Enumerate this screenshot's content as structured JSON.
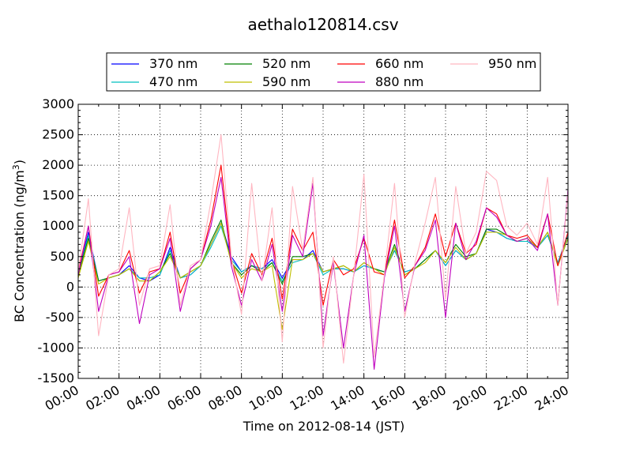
{
  "chart_data": {
    "type": "line",
    "title": "aethalo120814.csv",
    "xlabel": "Time on 2012-08-14 (JST)",
    "ylabel": "BC Concentration (ng/m³)",
    "ylabel_main": "BC Concentration (ng/m",
    "ylabel_sup": "3",
    "ylabel_end": ")",
    "xlim": [
      "00:00",
      "24:00"
    ],
    "ylim": [
      -1500,
      3000
    ],
    "x_ticks": [
      "00:00",
      "02:00",
      "04:00",
      "06:00",
      "08:00",
      "10:00",
      "12:00",
      "14:00",
      "16:00",
      "18:00",
      "20:00",
      "22:00",
      "24:00"
    ],
    "y_ticks": [
      3000,
      2500,
      2000,
      1500,
      1000,
      500,
      0,
      -500,
      -1000,
      -1500
    ],
    "grid": true,
    "legend_position": "top-center",
    "x": [
      "00:00",
      "00:30",
      "01:00",
      "01:30",
      "02:00",
      "02:30",
      "03:00",
      "03:30",
      "04:00",
      "04:30",
      "05:00",
      "05:30",
      "06:00",
      "06:30",
      "07:00",
      "07:30",
      "08:00",
      "08:30",
      "09:00",
      "09:30",
      "10:00",
      "10:30",
      "11:00",
      "11:30",
      "12:00",
      "12:30",
      "13:00",
      "13:30",
      "14:00",
      "14:30",
      "15:00",
      "15:30",
      "16:00",
      "16:30",
      "17:00",
      "17:30",
      "18:00",
      "18:30",
      "19:00",
      "19:30",
      "20:00",
      "20:30",
      "21:00",
      "21:30",
      "22:00",
      "22:30",
      "23:00",
      "23:30",
      "24:00"
    ],
    "series": [
      {
        "name": "370 nm",
        "color": "#0000ff",
        "values": [
          200,
          900,
          100,
          150,
          200,
          350,
          150,
          100,
          200,
          650,
          150,
          200,
          350,
          700,
          1050,
          500,
          250,
          350,
          300,
          450,
          150,
          450,
          450,
          600,
          250,
          300,
          300,
          250,
          350,
          300,
          250,
          600,
          250,
          300,
          450,
          600,
          350,
          600,
          450,
          550,
          950,
          900,
          800,
          750,
          750,
          650,
          850,
          400,
          850
        ]
      },
      {
        "name": "470 nm",
        "color": "#00bfbf",
        "values": [
          200,
          850,
          100,
          150,
          200,
          300,
          150,
          150,
          200,
          600,
          150,
          200,
          350,
          650,
          1000,
          450,
          250,
          350,
          300,
          400,
          100,
          400,
          450,
          550,
          200,
          300,
          300,
          250,
          350,
          300,
          250,
          600,
          250,
          300,
          450,
          600,
          350,
          600,
          450,
          550,
          900,
          900,
          800,
          750,
          750,
          650,
          850,
          400,
          850
        ]
      },
      {
        "name": "520 nm",
        "color": "#008000",
        "values": [
          200,
          800,
          100,
          150,
          200,
          300,
          100,
          100,
          250,
          550,
          150,
          250,
          350,
          750,
          1100,
          400,
          200,
          350,
          250,
          400,
          50,
          500,
          500,
          550,
          250,
          300,
          350,
          250,
          400,
          300,
          250,
          700,
          200,
          300,
          450,
          600,
          400,
          700,
          500,
          550,
          950,
          950,
          850,
          750,
          800,
          650,
          900,
          350,
          800
        ]
      },
      {
        "name": "590 nm",
        "color": "#bfbf00",
        "values": [
          150,
          750,
          50,
          150,
          200,
          300,
          100,
          100,
          250,
          500,
          150,
          250,
          350,
          700,
          1050,
          400,
          150,
          300,
          250,
          350,
          -700,
          450,
          450,
          550,
          250,
          300,
          350,
          250,
          400,
          300,
          200,
          650,
          200,
          300,
          400,
          600,
          400,
          650,
          450,
          550,
          900,
          900,
          850,
          750,
          800,
          650,
          900,
          350,
          800
        ]
      },
      {
        "name": "660 nm",
        "color": "#ff0000",
        "values": [
          250,
          1000,
          -150,
          200,
          250,
          600,
          -100,
          250,
          300,
          900,
          -100,
          300,
          450,
          1100,
          2000,
          450,
          -100,
          550,
          200,
          800,
          -200,
          950,
          600,
          900,
          -300,
          450,
          200,
          300,
          800,
          250,
          200,
          1100,
          150,
          350,
          650,
          1200,
          500,
          1050,
          550,
          700,
          1300,
          1200,
          850,
          800,
          850,
          650,
          1200,
          350,
          900
        ]
      },
      {
        "name": "880 nm",
        "color": "#bf00bf",
        "values": [
          200,
          1000,
          -400,
          200,
          250,
          500,
          -600,
          200,
          300,
          800,
          -400,
          300,
          450,
          1000,
          1800,
          350,
          -300,
          450,
          100,
          700,
          -400,
          850,
          500,
          1700,
          -800,
          400,
          -1000,
          200,
          850,
          -1350,
          150,
          1000,
          -400,
          350,
          600,
          1100,
          -500,
          1050,
          450,
          750,
          1300,
          1150,
          850,
          750,
          800,
          600,
          1200,
          -300,
          1600
        ]
      },
      {
        "name": "950 nm",
        "color": "#ffb6c1",
        "values": [
          250,
          1450,
          -800,
          200,
          300,
          1300,
          -300,
          300,
          350,
          1350,
          -300,
          350,
          450,
          1400,
          2500,
          500,
          -450,
          1700,
          100,
          1300,
          -900,
          1650,
          600,
          1800,
          -1000,
          500,
          -1250,
          200,
          1850,
          -1150,
          200,
          1700,
          -500,
          400,
          1050,
          1800,
          -200,
          1650,
          550,
          900,
          1900,
          1750,
          1000,
          850,
          1050,
          700,
          1800,
          -300,
          1550
        ]
      }
    ]
  }
}
